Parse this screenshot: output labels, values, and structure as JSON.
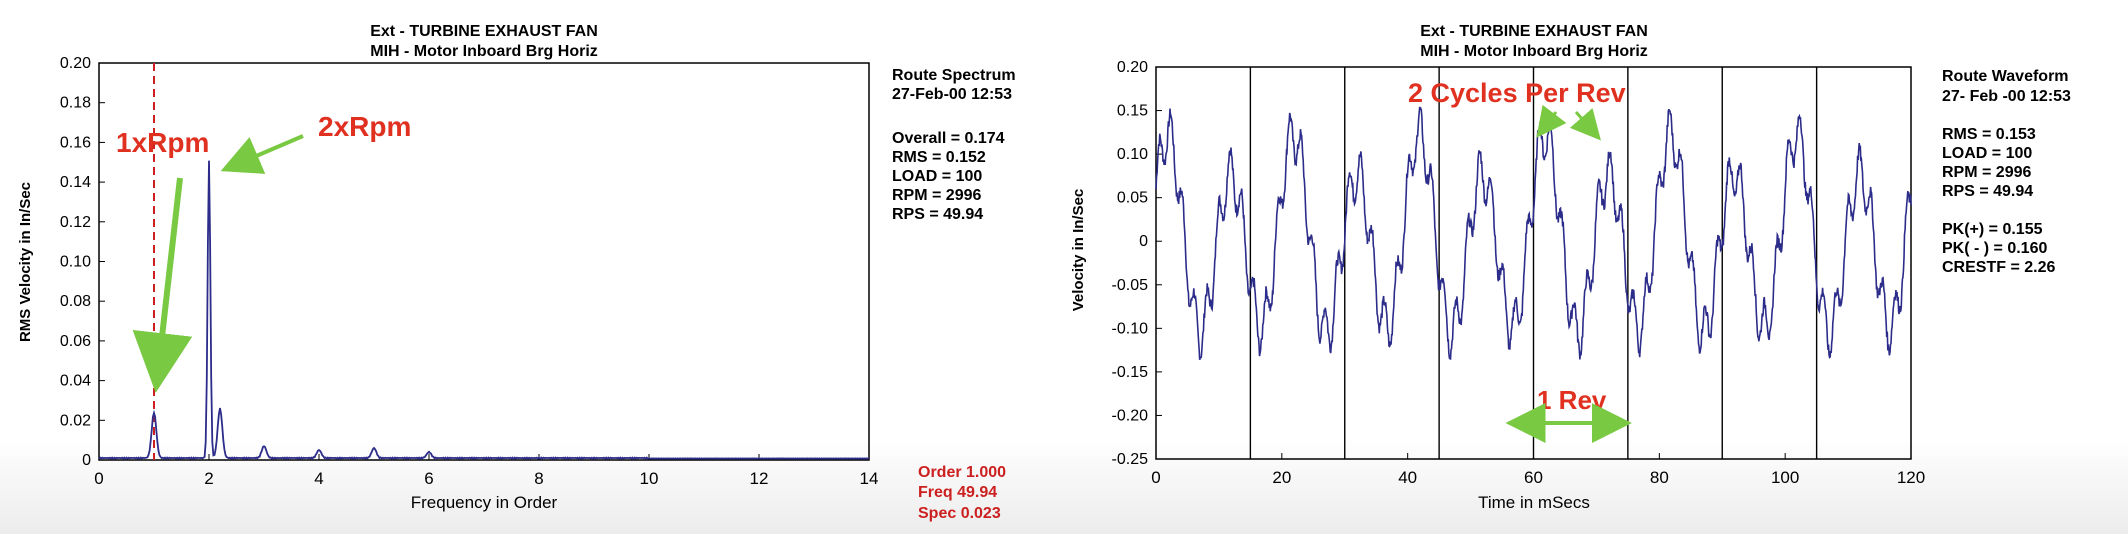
{
  "spectrum": {
    "title_line1": "Ext - TURBINE EXHAUST FAN",
    "title_line2": "MIH - Motor Inboard Brg Horiz",
    "info_lines": [
      "Route Spectrum",
      "27-Feb-00  12:53",
      "",
      "Overall = 0.174",
      "RMS = 0.152",
      "LOAD = 100",
      "RPM = 2996",
      "RPS = 49.94"
    ],
    "cursor_lines": [
      "Order  1.000",
      "Freq  49.94",
      "Spec  0.023"
    ],
    "annotation_1x": "1xRpm",
    "annotation_2x": "2xRpm"
  },
  "waveform": {
    "title_line1": "Ext - TURBINE EXHAUST FAN",
    "title_line2": "MIH - Motor Inboard Brg Horiz",
    "info_lines": [
      "Route Waveform",
      "27- Feb -00 12:53",
      "",
      "RMS =  0.153",
      "LOAD = 100",
      "RPM = 2996",
      "RPS = 49.94",
      "",
      "PK(+) = 0.155",
      "PK( - ) = 0.160",
      "CRESTF = 2.26"
    ],
    "annotation_cycles": "2 Cycles Per Rev",
    "annotation_rev": "1 Rev"
  },
  "colors": {
    "trace": "#2c2c8a",
    "annotation_red": "#e03020",
    "arrow_green": "#7ac943",
    "cursor_red": "#cc2020",
    "frame": "#000000"
  },
  "chart_data": [
    {
      "type": "line",
      "title": "Ext - TURBINE EXHAUST FAN / MIH - Motor Inboard Brg Horiz",
      "xlabel": "Frequency in Order",
      "ylabel": "RMS Velocity in In/Sec",
      "xlim": [
        0,
        14
      ],
      "ylim": [
        0,
        0.2
      ],
      "xticks": [
        0,
        2,
        4,
        6,
        8,
        10,
        12,
        14
      ],
      "yticks": [
        0,
        0.02,
        0.04,
        0.06,
        0.08,
        0.1,
        0.12,
        0.14,
        0.16,
        0.18,
        0.2
      ],
      "ytick_labels": [
        "0",
        "0.02",
        "0.04",
        "0.06",
        "0.08",
        "0.10",
        "0.12",
        "0.14",
        "0.16",
        "0.18",
        "0.20"
      ],
      "cursor_x": 1.0,
      "peaks": [
        {
          "x": 1.0,
          "y": 0.023
        },
        {
          "x": 2.0,
          "y": 0.15
        },
        {
          "x": 2.2,
          "y": 0.025
        },
        {
          "x": 3.0,
          "y": 0.006
        },
        {
          "x": 4.0,
          "y": 0.004
        },
        {
          "x": 5.0,
          "y": 0.005
        },
        {
          "x": 6.0,
          "y": 0.003
        }
      ],
      "grid": false
    },
    {
      "type": "line",
      "title": "Ext - TURBINE EXHAUST FAN / MIH - Motor Inboard Brg Horiz",
      "xlabel": "Time in mSecs",
      "ylabel": "Velocity in In/Sec",
      "xlim": [
        0,
        120
      ],
      "ylim": [
        -0.25,
        0.2
      ],
      "xticks": [
        0,
        20,
        40,
        60,
        80,
        100,
        120
      ],
      "yticks": [
        -0.25,
        -0.2,
        -0.15,
        -0.1,
        -0.05,
        0,
        0.05,
        0.1,
        0.15,
        0.2
      ],
      "ytick_labels": [
        "-0.25",
        "-0.20",
        "-0.15",
        "-0.10",
        "-0.05",
        "0",
        "0.05",
        "0.10",
        "0.15",
        "0.20"
      ],
      "rev_markers": [
        15,
        30,
        45,
        60,
        75,
        90,
        105
      ],
      "rev_span": [
        60,
        75
      ],
      "period_ms": 10.0,
      "amplitude_peak": 0.155,
      "amplitude_trough": -0.16,
      "grid": false
    }
  ]
}
